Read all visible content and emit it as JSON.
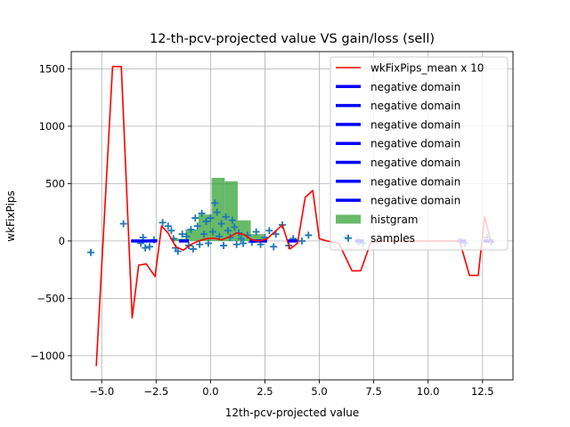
{
  "chart_data": {
    "type": "line",
    "title": "12-th-pcv-projected value VS gain/loss (sell)",
    "xlabel": "12th-pcv-projected value",
    "ylabel": "wkFixPips",
    "xlim": [
      -6.4,
      13.9
    ],
    "ylim": [
      -1210,
      1650
    ],
    "xticks": [
      -5,
      -2.5,
      0,
      2.5,
      5,
      7.5,
      10,
      12.5
    ],
    "xtick_labels": [
      "−5.0",
      "−2.5",
      "0.0",
      "2.5",
      "5.0",
      "7.5",
      "10.0",
      "12.5"
    ],
    "yticks": [
      -1000,
      -500,
      0,
      500,
      1000,
      1500
    ],
    "ytick_labels": [
      "−1000",
      "−500",
      "0",
      "500",
      "1000",
      "1500"
    ],
    "grid": true,
    "legend_position": "top-right",
    "colors": {
      "mean_line": "#ff0000",
      "negative_domain": "#0000ff",
      "histogram": "#2ca02c",
      "samples": "#1f77b4"
    },
    "legend": [
      {
        "label": "wkFixPips_mean x 10",
        "kind": "line",
        "color": "#ff0000"
      },
      {
        "label": "negative domain",
        "kind": "thick-line",
        "color": "#0000ff"
      },
      {
        "label": "negative domain",
        "kind": "thick-line",
        "color": "#0000ff"
      },
      {
        "label": "negative domain",
        "kind": "thick-line",
        "color": "#0000ff"
      },
      {
        "label": "negative domain",
        "kind": "thick-line",
        "color": "#0000ff"
      },
      {
        "label": "negative domain",
        "kind": "thick-line",
        "color": "#0000ff"
      },
      {
        "label": "negative domain",
        "kind": "thick-line",
        "color": "#0000ff"
      },
      {
        "label": "negative domain",
        "kind": "thick-line",
        "color": "#0000ff"
      },
      {
        "label": "histgram",
        "kind": "patch",
        "color": "#2ca02c"
      },
      {
        "label": "samples",
        "kind": "marker",
        "color": "#1f77b4"
      }
    ],
    "series": [
      {
        "name": "wkFixPips_mean x 10",
        "x": [
          -5.25,
          -4.5,
          -4.1,
          -3.6,
          -3.3,
          -2.95,
          -2.55,
          -2.25,
          -1.95,
          -1.6,
          -1.25,
          -0.9,
          -0.55,
          -0.2,
          0.15,
          0.5,
          0.85,
          1.2,
          1.55,
          1.9,
          2.25,
          2.6,
          2.95,
          3.3,
          3.65,
          4.0,
          4.35,
          4.7,
          5.0,
          5.35,
          5.9,
          6.5,
          6.9,
          7.35,
          7.7,
          11.45,
          11.9,
          12.3,
          12.6,
          12.9
        ],
        "y": [
          -1090,
          1520,
          1520,
          -670,
          -210,
          -200,
          -310,
          130,
          70,
          -50,
          -80,
          -30,
          0,
          20,
          25,
          10,
          35,
          70,
          55,
          10,
          0,
          20,
          80,
          140,
          -70,
          -20,
          380,
          440,
          20,
          0,
          -20,
          -260,
          -260,
          -20,
          0,
          0,
          -300,
          -300,
          210,
          -20
        ]
      }
    ],
    "negative_domains": [
      {
        "x": [
          -3.65,
          -2.45
        ],
        "y": 0
      },
      {
        "x": [
          -1.45,
          -1.0
        ],
        "y": 0
      },
      {
        "x": [
          1.8,
          2.6
        ],
        "y": 0
      },
      {
        "x": [
          3.55,
          4.0
        ],
        "y": 0
      },
      {
        "x": [
          6.65,
          7.05
        ],
        "y": 0
      },
      {
        "x": [
          11.35,
          11.75
        ],
        "y": 0
      },
      {
        "x": [
          12.55,
          13.0
        ],
        "y": 0
      }
    ],
    "histogram": {
      "bin_edges": [
        -1.75,
        -1.15,
        -0.55,
        0.05,
        0.65,
        1.25,
        1.85,
        2.45
      ],
      "counts": [
        20,
        100,
        230,
        550,
        520,
        180,
        60
      ]
    },
    "samples": [
      {
        "x": -5.5,
        "y": -100
      },
      {
        "x": -4.0,
        "y": 150
      },
      {
        "x": -3.2,
        "y": -20
      },
      {
        "x": -3.1,
        "y": 30
      },
      {
        "x": -3.0,
        "y": -60
      },
      {
        "x": -2.8,
        "y": -50
      },
      {
        "x": -2.6,
        "y": 10
      },
      {
        "x": -2.2,
        "y": 160
      },
      {
        "x": -1.95,
        "y": 130
      },
      {
        "x": -1.8,
        "y": 90
      },
      {
        "x": -1.7,
        "y": 20
      },
      {
        "x": -1.6,
        "y": -60
      },
      {
        "x": -1.5,
        "y": -90
      },
      {
        "x": -1.3,
        "y": 60
      },
      {
        "x": -1.1,
        "y": 40
      },
      {
        "x": -1.0,
        "y": -40
      },
      {
        "x": -0.9,
        "y": 100
      },
      {
        "x": -0.8,
        "y": -70
      },
      {
        "x": -0.7,
        "y": 200
      },
      {
        "x": -0.6,
        "y": 130
      },
      {
        "x": -0.5,
        "y": -30
      },
      {
        "x": -0.4,
        "y": 240
      },
      {
        "x": -0.3,
        "y": 60
      },
      {
        "x": -0.2,
        "y": 170
      },
      {
        "x": -0.1,
        "y": -20
      },
      {
        "x": 0.0,
        "y": 200
      },
      {
        "x": 0.1,
        "y": 80
      },
      {
        "x": 0.2,
        "y": 330
      },
      {
        "x": 0.3,
        "y": 250
      },
      {
        "x": 0.4,
        "y": 40
      },
      {
        "x": 0.5,
        "y": 150
      },
      {
        "x": 0.6,
        "y": -40
      },
      {
        "x": 0.7,
        "y": 210
      },
      {
        "x": 0.8,
        "y": 90
      },
      {
        "x": 0.9,
        "y": 30
      },
      {
        "x": 1.0,
        "y": 180
      },
      {
        "x": 1.1,
        "y": 120
      },
      {
        "x": 1.2,
        "y": -30
      },
      {
        "x": 1.3,
        "y": 70
      },
      {
        "x": 1.4,
        "y": 20
      },
      {
        "x": 1.5,
        "y": -20
      },
      {
        "x": 1.7,
        "y": 50
      },
      {
        "x": 1.9,
        "y": -10
      },
      {
        "x": 2.1,
        "y": 80
      },
      {
        "x": 2.3,
        "y": -30
      },
      {
        "x": 2.5,
        "y": 30
      },
      {
        "x": 2.7,
        "y": 90
      },
      {
        "x": 2.9,
        "y": -50
      },
      {
        "x": 3.0,
        "y": 60
      },
      {
        "x": 3.3,
        "y": 140
      },
      {
        "x": 3.6,
        "y": -40
      },
      {
        "x": 3.8,
        "y": 20
      },
      {
        "x": 4.2,
        "y": 0
      },
      {
        "x": 4.5,
        "y": 50
      },
      {
        "x": 6.25,
        "y": 30
      },
      {
        "x": 6.8,
        "y": -5
      },
      {
        "x": 7.0,
        "y": -20
      },
      {
        "x": 11.5,
        "y": -5
      },
      {
        "x": 11.7,
        "y": -20
      },
      {
        "x": 12.7,
        "y": 30
      },
      {
        "x": 12.9,
        "y": -10
      }
    ]
  }
}
